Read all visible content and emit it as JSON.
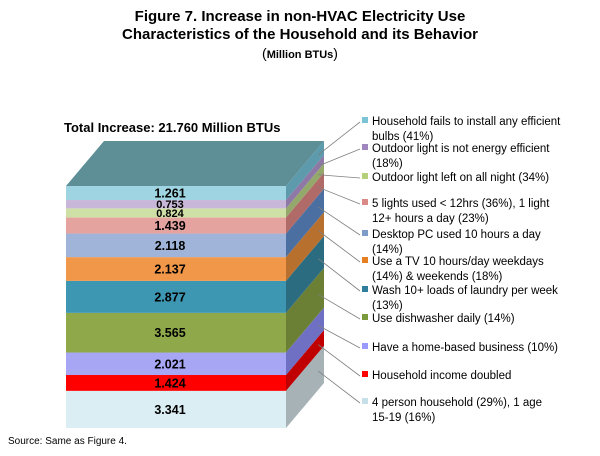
{
  "title_line1": "Figure 7.  Increase in non-HVAC Electricity Use",
  "title_line2": "Characteristics of the Household and its Behavior",
  "subtitle_open": "(",
  "subtitle_unit": "Million BTUs",
  "subtitle_close": ")",
  "total_label": "Total Increase: 21.760 Million BTUs",
  "source": "Source: Same as Figure 4.",
  "chart_data": {
    "type": "bar",
    "stacked": true,
    "unit": "Million BTUs",
    "segments": [
      {
        "value": 3.341,
        "label_text": "3.341",
        "legend": [
          "4 person household (29%), 1 age",
          "15-19 (16%)"
        ],
        "color": "#dbeef4",
        "side": "#a6b2b6",
        "marker": "#c6dfe8"
      },
      {
        "value": 1.424,
        "label_text": "1.424",
        "legend": [
          "Household income doubled"
        ],
        "color": "#ff0000",
        "side": "#c00000",
        "marker": "#ff0000"
      },
      {
        "value": 2.021,
        "label_text": "2.021",
        "legend": [
          "Have a home-based business (10%)"
        ],
        "color": "#a6a6f5",
        "side": "#6f6fc4",
        "marker": "#9999ff"
      },
      {
        "value": 3.565,
        "label_text": "3.565",
        "legend": [
          "Use dishwasher daily (14%)"
        ],
        "color": "#8fa84a",
        "side": "#6b7f35",
        "marker": "#7a9a3c"
      },
      {
        "value": 2.877,
        "label_text": "2.877",
        "legend": [
          "Wash 10+ loads of laundry per week",
          "(13%)"
        ],
        "color": "#3d97b2",
        "side": "#2b6c80",
        "marker": "#2f7f9c"
      },
      {
        "value": 2.137,
        "label_text": "2.137",
        "legend": [
          "Use  a TV 10 hours/day weekdays",
          "(14%) & weekends (18%)"
        ],
        "color": "#f0974a",
        "side": "#b8702f",
        "marker": "#e67e22"
      },
      {
        "value": 2.118,
        "label_text": "2.118",
        "legend": [
          "Desktop PC used 10 hours a day",
          "(14%)"
        ],
        "color": "#9fb4d8",
        "side": "#4a6fa0",
        "marker": "#7f9cc9"
      },
      {
        "value": 1.439,
        "label_text": "1.439",
        "legend": [
          "5 lights used < 12hrs (36%), 1 light",
          "12+ hours a day (23%)"
        ],
        "color": "#e5a3a0",
        "side": "#b06a67",
        "marker": "#d98a86"
      },
      {
        "value": 0.824,
        "label_text": "0.824",
        "legend": [
          "Outdoor light left on all night (34%)"
        ],
        "color": "#cfe0a6",
        "side": "#93a86a",
        "marker": "#b5cf7a"
      },
      {
        "value": 0.753,
        "label_text": "0.753",
        "legend": [
          "Outdoor light is not energy efficient",
          "(18%)"
        ],
        "color": "#c9b7d9",
        "side": "#8e78a6",
        "marker": "#9f86be"
      },
      {
        "value": 1.261,
        "label_text": "1.261",
        "legend": [
          "Household fails to install  any efficient",
          "bulbs (41%)"
        ],
        "color": "#9fd5e3",
        "side": "#5c9aac",
        "marker": "#7cc3d6"
      }
    ],
    "top_color": "#5e8f97"
  }
}
